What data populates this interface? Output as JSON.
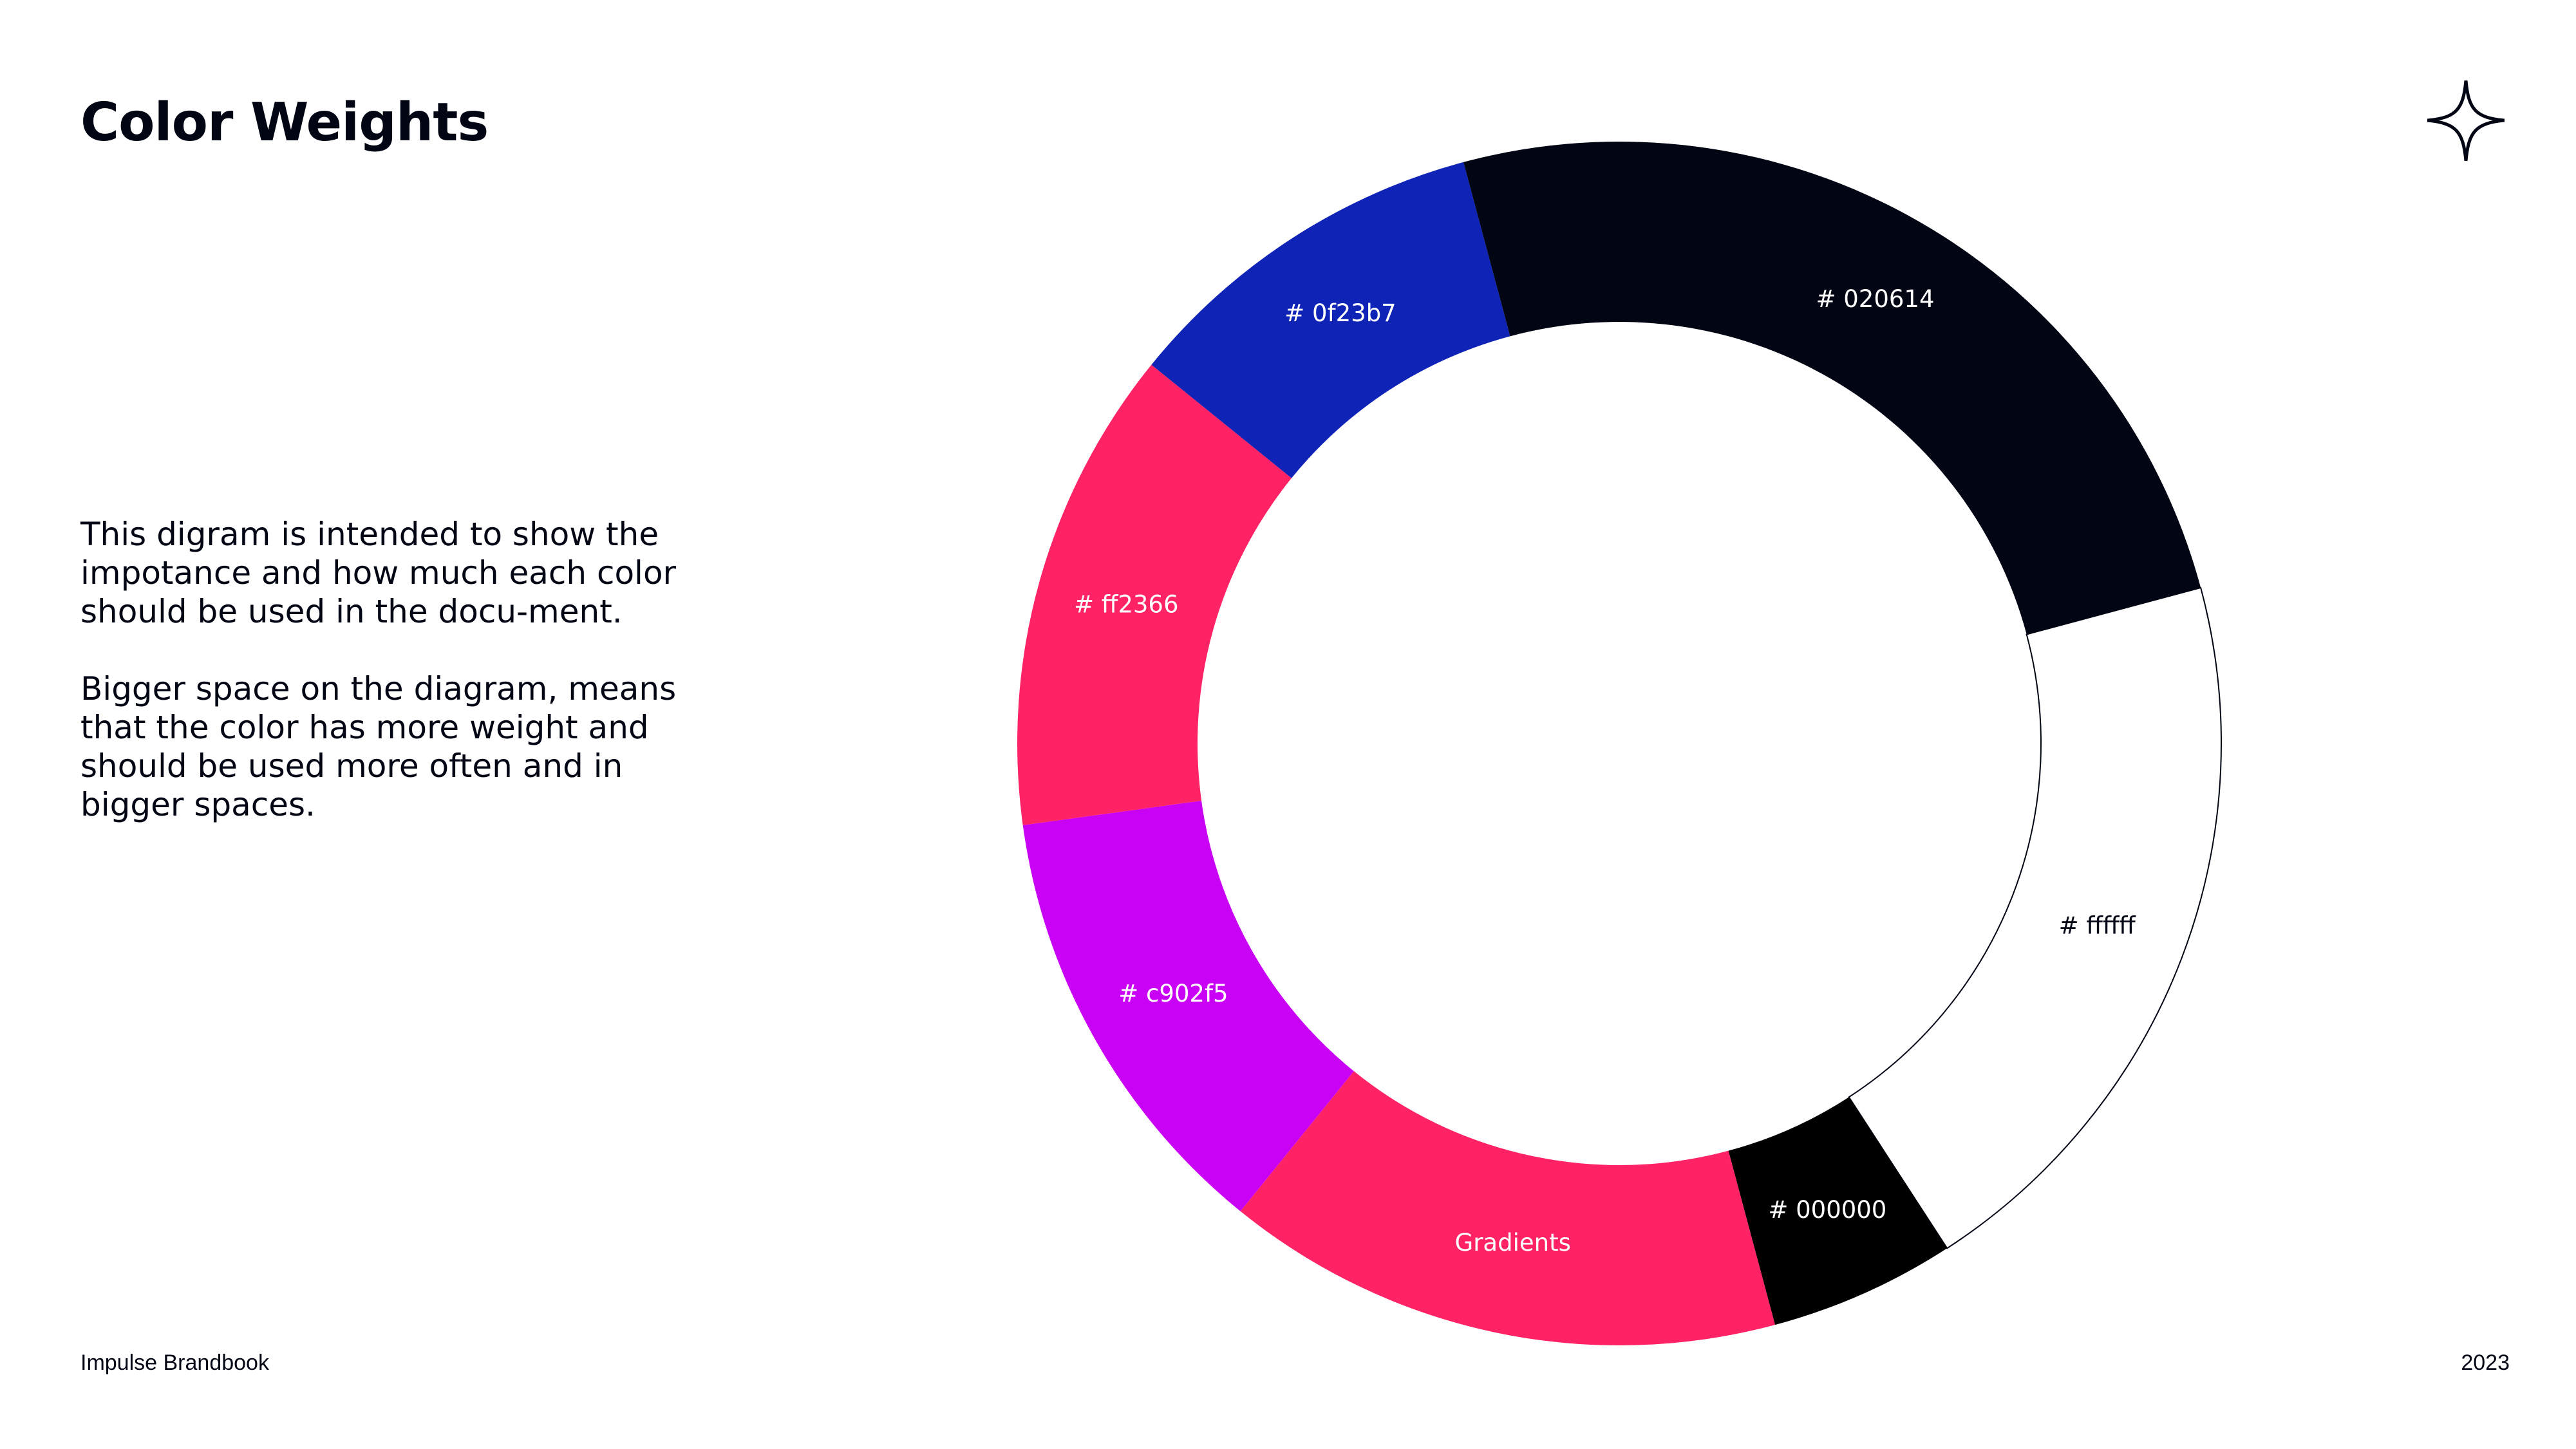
{
  "page": {
    "title": "Color Weights",
    "description": [
      "This digram is intended to show the impotance and how much each color should be used in the docu-ment.",
      "Bigger space on the diagram, means that the color has more weight and should be used more often and in bigger spaces."
    ],
    "footer_left": "Impulse Brandbook",
    "footer_right": "2023",
    "logo_icon": "four-point-star-icon"
  },
  "chart_data": {
    "type": "pie",
    "variant": "donut",
    "title": "",
    "series": [
      {
        "slices": [
          {
            "label": "# ffffff",
            "value": 20,
            "color": "#ffffff",
            "label_color": "#020614"
          },
          {
            "label": "# 000000",
            "value": 5,
            "color": "#000000",
            "label_color": "#ffffff"
          },
          {
            "label": "Gradients",
            "value": 15,
            "color": "gradient",
            "gradient_colors": [
              "#0f23b7",
              "#c902f5",
              "#ff2366"
            ],
            "label_color": "#ffffff"
          },
          {
            "label": "# c902f5",
            "value": 12,
            "color": "#c902f5",
            "label_color": "#ffffff"
          },
          {
            "label": "# ff2366",
            "value": 13,
            "color": "#ff2366",
            "label_color": "#ffffff"
          },
          {
            "label": "# 0f23b7",
            "value": 10,
            "color": "#0f23b7",
            "label_color": "#ffffff"
          },
          {
            "label": "# 020614",
            "value": 25,
            "color": "#020614",
            "label_color": "#ffffff"
          }
        ]
      }
    ],
    "legend": "none"
  }
}
